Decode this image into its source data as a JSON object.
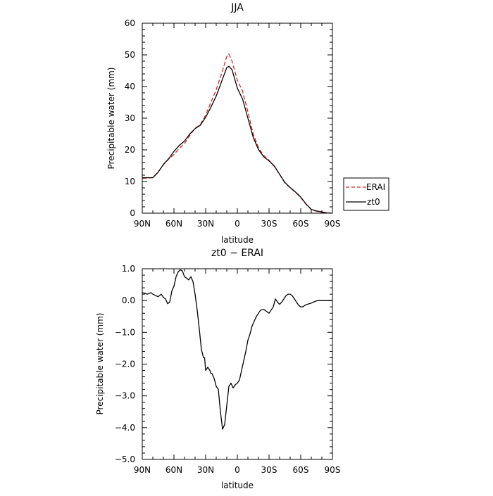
{
  "chart_data": [
    {
      "type": "line",
      "title": "JJA",
      "xlabel": "latitude",
      "ylabel": "Precipitable water (mm)",
      "xlim": [
        90,
        -90
      ],
      "ylim": [
        0,
        60
      ],
      "xticks": [
        90,
        60,
        30,
        0,
        -30,
        -60,
        -90
      ],
      "xtick_labels": [
        "90N",
        "60N",
        "30N",
        "0",
        "30S",
        "60S",
        "90S"
      ],
      "yticks": [
        0,
        10,
        20,
        30,
        40,
        50,
        60
      ],
      "ytick_labels": [
        "0",
        "10",
        "20",
        "30",
        "40",
        "50",
        "60"
      ],
      "legend_position": "right",
      "grid": false,
      "series": [
        {
          "name": "ERAI",
          "color": "#d62728",
          "style": "dashed",
          "x": [
            90,
            85,
            80,
            75,
            70,
            65,
            60,
            55,
            50,
            45,
            40,
            35,
            30,
            25,
            20,
            15,
            10,
            8,
            5,
            0,
            -5,
            -10,
            -15,
            -20,
            -25,
            -30,
            -35,
            -40,
            -45,
            -50,
            -55,
            -60,
            -65,
            -70,
            -75,
            -80,
            -85,
            -90
          ],
          "values": [
            11,
            11.1,
            11.3,
            13,
            15.3,
            17.1,
            18.5,
            20.5,
            22,
            24.6,
            26.8,
            28,
            31,
            35,
            39,
            44,
            49.5,
            50.3,
            48,
            42,
            38.5,
            32,
            25,
            20.7,
            18.2,
            16.7,
            14.8,
            12.2,
            9.6,
            8,
            6.6,
            4.9,
            2.8,
            1.1,
            0.6,
            0.3,
            0.1,
            0
          ]
        },
        {
          "name": "zt0",
          "color": "#000000",
          "style": "solid",
          "x": [
            90,
            85,
            80,
            75,
            70,
            65,
            60,
            55,
            50,
            45,
            40,
            35,
            30,
            25,
            20,
            15,
            10,
            8,
            5,
            0,
            -5,
            -10,
            -15,
            -20,
            -25,
            -30,
            -35,
            -40,
            -45,
            -50,
            -55,
            -60,
            -65,
            -70,
            -75,
            -80,
            -85,
            -90
          ],
          "values": [
            11.2,
            11.2,
            11.2,
            12.9,
            15.4,
            17.2,
            19.5,
            21.4,
            22.8,
            25,
            26.7,
            27.8,
            30.3,
            33.5,
            37,
            41.5,
            46,
            46.4,
            45.3,
            39.5,
            36,
            30,
            24,
            20.1,
            17.8,
            16.5,
            14.9,
            12.3,
            9.7,
            8.1,
            6.7,
            5.1,
            2.9,
            1.2,
            0.7,
            0.4,
            0.1,
            0
          ]
        }
      ]
    },
    {
      "type": "line",
      "title": "zt0 − ERAI",
      "xlabel": "latitude",
      "ylabel": "Precipitable water (mm)",
      "xlim": [
        90,
        -90
      ],
      "ylim": [
        -5,
        1
      ],
      "xticks": [
        90,
        60,
        30,
        0,
        -30,
        -60,
        -90
      ],
      "xtick_labels": [
        "90N",
        "60N",
        "30N",
        "0",
        "30S",
        "60S",
        "90S"
      ],
      "yticks": [
        1,
        0,
        -1,
        -2,
        -3,
        -4,
        -5
      ],
      "ytick_labels": [
        "1.0",
        "0.0",
        "−1.0",
        "−2.0",
        "−3.0",
        "−4.0",
        "−5.0"
      ],
      "grid": false,
      "series": [
        {
          "color": "#000000",
          "style": "solid",
          "x": [
            90,
            87,
            85,
            82,
            80,
            77,
            75,
            72,
            70,
            68,
            66,
            64,
            62,
            60,
            58,
            56,
            54,
            52,
            50,
            48,
            46,
            44,
            42,
            40,
            38,
            36,
            34,
            32,
            31,
            30,
            28,
            26,
            25,
            24,
            22,
            20,
            18,
            16,
            14,
            12,
            10,
            8,
            6,
            4,
            2,
            0,
            -2,
            -4,
            -6,
            -8,
            -10,
            -12,
            -14,
            -16,
            -18,
            -20,
            -22,
            -25,
            -28,
            -30,
            -32,
            -34,
            -36,
            -38,
            -40,
            -42,
            -44,
            -46,
            -48,
            -50,
            -52,
            -54,
            -56,
            -58,
            -60,
            -62,
            -64,
            -66,
            -68,
            -70,
            -72,
            -74,
            -76,
            -78,
            -80,
            -82,
            -84,
            -86,
            -88,
            -90
          ],
          "values": [
            0.25,
            0.22,
            0.2,
            0.25,
            0.2,
            0.15,
            0.12,
            0.2,
            0.1,
            0.05,
            -0.1,
            -0.05,
            0.3,
            0.45,
            0.75,
            0.9,
            0.97,
            0.93,
            0.75,
            0.7,
            0.65,
            0.75,
            0.6,
            0.2,
            -0.3,
            -0.9,
            -1.55,
            -1.8,
            -1.8,
            -2.2,
            -2.1,
            -2.2,
            -2.3,
            -2.3,
            -2.45,
            -2.7,
            -2.8,
            -3.5,
            -4.05,
            -3.9,
            -3.3,
            -2.7,
            -2.6,
            -2.75,
            -2.65,
            -2.6,
            -2.5,
            -2.2,
            -1.9,
            -1.6,
            -1.25,
            -1.05,
            -0.8,
            -0.65,
            -0.5,
            -0.4,
            -0.3,
            -0.28,
            -0.35,
            -0.4,
            -0.3,
            -0.2,
            0.05,
            -0.05,
            -0.12,
            -0.05,
            0.05,
            0.15,
            0.2,
            0.2,
            0.15,
            0.05,
            -0.05,
            -0.15,
            -0.2,
            -0.2,
            -0.15,
            -0.12,
            -0.1,
            -0.08,
            -0.05,
            -0.02,
            0,
            0,
            0,
            0,
            0,
            0,
            0,
            0
          ]
        }
      ]
    }
  ]
}
